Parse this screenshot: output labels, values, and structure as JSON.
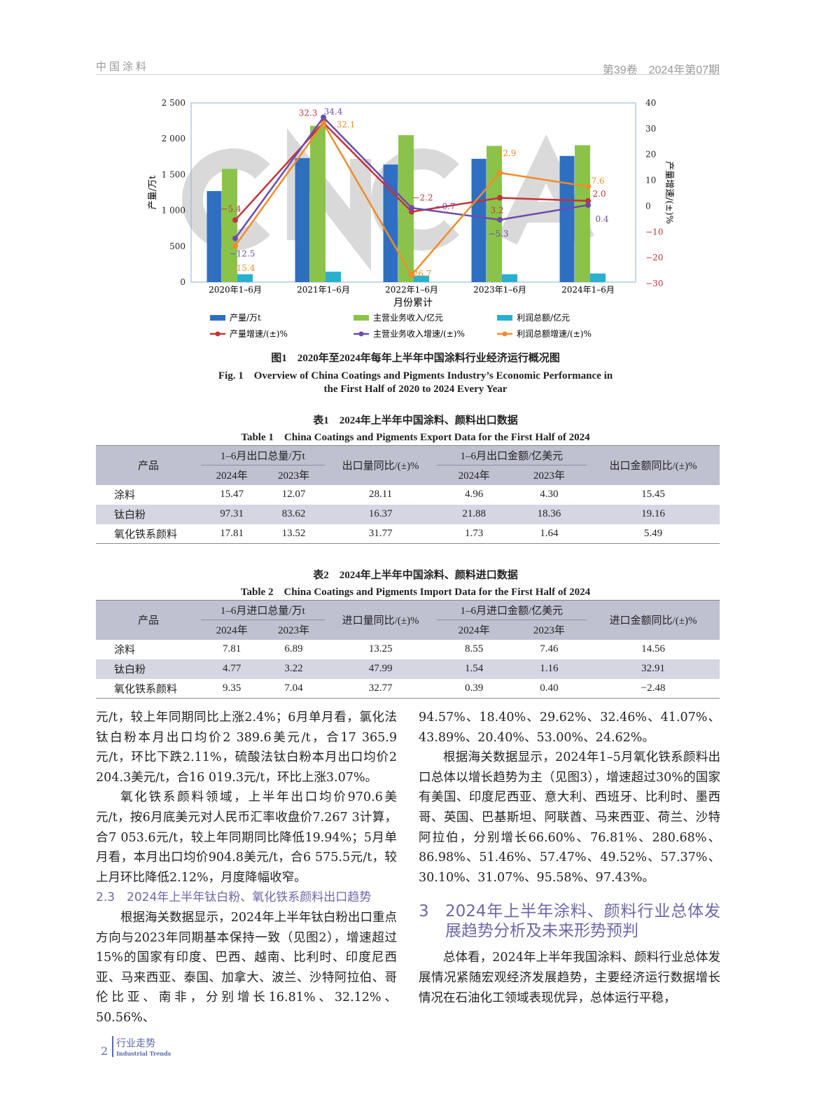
{
  "header": {
    "journal": "中国涂料",
    "issue": "第39卷　2024年第07期"
  },
  "chart_data": {
    "type": "bar+line",
    "watermark": "CNCIA",
    "categories": [
      "2020年1–6月",
      "2021年1–6月",
      "2022年1–6月",
      "2023年1–6月",
      "2024年1–6月"
    ],
    "xlabel": "月份累计",
    "ylabel": "产量/万t",
    "ylabel_right": "产量增速/(±)%",
    "ylim": [
      0,
      2500
    ],
    "yticks": [
      "0",
      "500",
      "1 000",
      "1 500",
      "2 000",
      "2 500"
    ],
    "ylim_right": [
      -30,
      40
    ],
    "yticks_right": [
      "−30",
      "−20",
      "−10",
      "0",
      "10",
      "20",
      "30",
      "40"
    ],
    "bars": [
      {
        "name": "产量/万t",
        "color": "#2f6fc0",
        "values": [
          1270,
          1730,
          1640,
          1720,
          1760
        ]
      },
      {
        "name": "主营业务收入/亿元",
        "color": "#8bc34a",
        "values": [
          1580,
          2180,
          2050,
          1900,
          1910
        ]
      },
      {
        "name": "利润总额/亿元",
        "color": "#29b0d0",
        "values": [
          110,
          145,
          90,
          110,
          120
        ]
      }
    ],
    "lines": [
      {
        "name": "产量增速/(±)%",
        "color": "#c0343a",
        "values": [
          -5.4,
          32.3,
          -2.2,
          3.2,
          2.0
        ],
        "labels": [
          "−5.4",
          "32.3",
          "−2.2",
          "3.2",
          "2.0"
        ]
      },
      {
        "name": "主营业务收入增速/(±)%",
        "color": "#6d4ba8",
        "values": [
          -12.5,
          34.4,
          -0.7,
          -5.3,
          0.4
        ],
        "labels": [
          "−12.5",
          "34.4",
          "−0.7",
          "−5.3",
          "0.4"
        ]
      },
      {
        "name": "利润总额增速/(±)%",
        "color": "#f08c2a",
        "values": [
          -15.4,
          32.1,
          -26.7,
          12.9,
          7.6
        ],
        "labels": [
          "−15.4",
          "32.1",
          "−26.7",
          "12.9",
          "7.6"
        ]
      }
    ],
    "legend": "bottom",
    "grid": false
  },
  "fig1": {
    "cn": "图1　2020年至2024年每年上半年中国涂料行业经济运行概况图",
    "en1": "Fig. 1　Overview of China Coatings and Pigments Industry’s Economic Performance in",
    "en2": "the First Half of 2020 to 2024 Every Year"
  },
  "table1": {
    "cn": "表1　2024年上半年中国涂料、颜料出口数据",
    "en": "Table 1　China Coatings and Pigments Export Data for the First Half of 2024",
    "h": [
      "产品",
      "1–6月出口总量/万t",
      "出口量同比/(±)%",
      "1–6月出口金额/亿美元",
      "出口金额同比/(±)%",
      "2024年",
      "2023年",
      "2024年",
      "2023年"
    ],
    "rows": [
      [
        "涂料",
        "15.47",
        "12.07",
        "28.11",
        "4.96",
        "4.30",
        "15.45"
      ],
      [
        "钛白粉",
        "97.31",
        "83.62",
        "16.37",
        "21.88",
        "18.36",
        "19.16"
      ],
      [
        "氧化铁系颜料",
        "17.81",
        "13.52",
        "31.77",
        "1.73",
        "1.64",
        "5.49"
      ]
    ]
  },
  "table2": {
    "cn": "表2　2024年上半年中国涂料、颜料进口数据",
    "en": "Table 2　China Coatings and Pigments Import Data for the First Half of 2024",
    "h": [
      "产品",
      "1–6月进口总量/万t",
      "进口量同比/(±)%",
      "1–6月进口金额/亿美元",
      "进口金额同比/(±)%",
      "2024年",
      "2023年",
      "2024年",
      "2023年"
    ],
    "rows": [
      [
        "涂料",
        "7.81",
        "6.89",
        "13.25",
        "8.55",
        "7.46",
        "14.56"
      ],
      [
        "钛白粉",
        "4.77",
        "3.22",
        "47.99",
        "1.54",
        "1.16",
        "32.91"
      ],
      [
        "氧化铁系颜料",
        "9.35",
        "7.04",
        "32.77",
        "0.39",
        "0.40",
        "−2.48"
      ]
    ]
  },
  "left": {
    "p1": "元/t，较上年同期同比上涨2.4%；6月单月看，氯化法钛白粉本月出口均价2 389.6美元/t，合17 365.9元/t，环比下跌2.11%，硫酸法钛白粉本月出口均价2 204.3美元/t，合16 019.3元/t，环比上涨3.07%。",
    "p2": "氧化铁系颜料领域，上半年出口均价970.6美元/t，按6月底美元对人民币汇率收盘价7.267 3计算，合7 053.6元/t，较上年同期同比降低19.94%；5月单月看，本月出口均价904.8美元/t，合6 575.5元/t，较上月环比降低2.12%，月度降幅收窄。",
    "h2": "2.3　2024年上半年钛白粉、氧化铁系颜料出口趋势",
    "p3": "根据海关数据显示，2024年上半年钛白粉出口重点方向与2023年同期基本保持一致（见图2），增速超过15%的国家有印度、巴西、越南、比利时、印度尼西亚、马来西亚、泰国、加拿大、波兰、沙特阿拉伯、哥伦比亚、南非，分别增长16.81%、32.12%、50.56%、"
  },
  "right": {
    "p1": "94.57%、18.40%、29.62%、32.46%、41.07%、43.89%、20.40%、53.00%、24.62%。",
    "p2": "根据海关数据显示，2024年1–5月氧化铁系颜料出口总体以增长趋势为主（见图3），增速超过30%的国家有美国、印度尼西亚、意大利、西班牙、比利时、墨西哥、英国、巴基斯坦、阿联酋、马来西亚、荷兰、沙特阿拉伯，分别增长66.60%、76.81%、280.68%、86.98%、51.46%、57.47%、49.52%、57.37%、30.10%、31.07%、95.58%、97.43%。",
    "h1n": "3",
    "h1": "2024年上半年涂料、颜料行业总体发展趋势分析及未来形势预判",
    "p3": "总体看，2024年上半年我国涂料、颜料行业总体发展情况紧随宏观经济发展趋势，主要经济运行数据增长情况在石油化工领域表现优异，总体运行平稳，"
  },
  "footer": {
    "page": "2",
    "section": "行业走势",
    "section_en": "Industrial Trends"
  }
}
